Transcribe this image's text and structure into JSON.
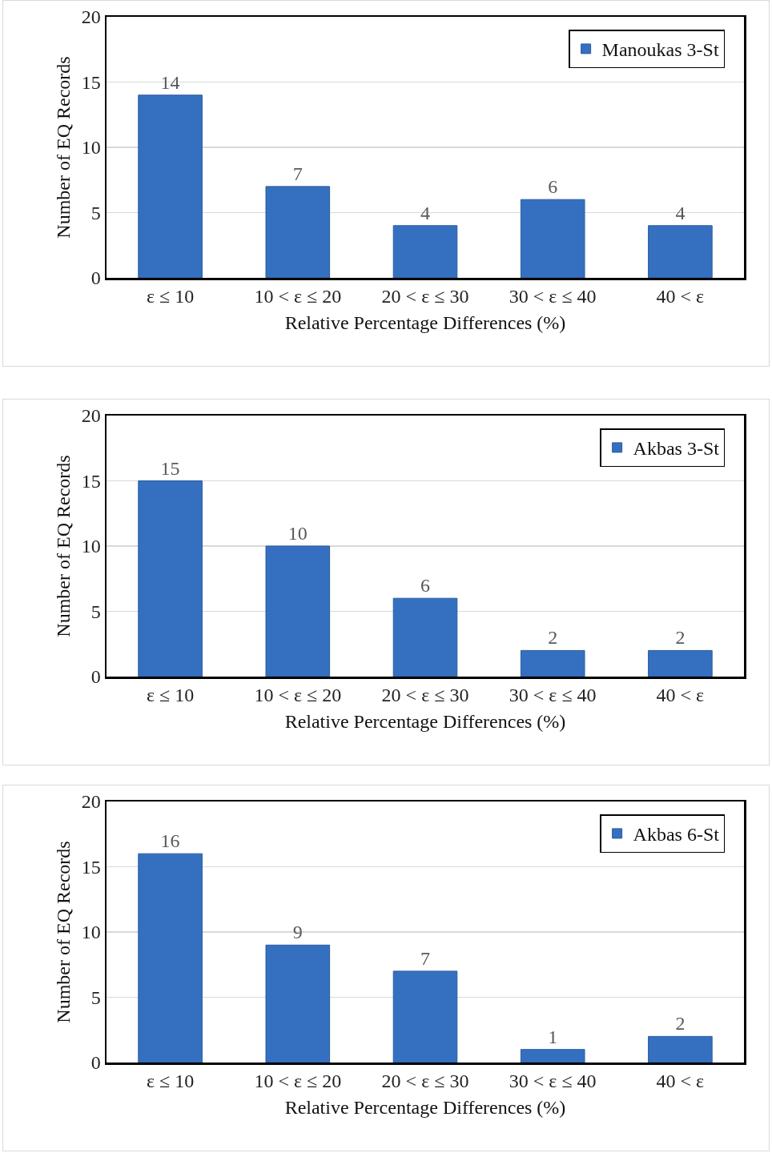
{
  "chart_data": [
    {
      "type": "bar",
      "xlabel": "Relative Percentage Differences (%)",
      "ylabel": "Number of EQ Records",
      "categories": [
        "ε ≤ 10",
        "10 < ε ≤ 20",
        "20 < ε ≤ 30",
        "30 < ε ≤ 40",
        "40 < ε"
      ],
      "series": [
        {
          "name": "Manoukas 3-St",
          "color": "#3570c0",
          "values": [
            14,
            7,
            4,
            6,
            4
          ]
        }
      ],
      "ylim": [
        0,
        20
      ],
      "yticks": [
        0,
        5,
        10,
        15,
        20
      ],
      "grid": "y",
      "legend": "top right",
      "data_labels": true
    },
    {
      "type": "bar",
      "xlabel": "Relative Percentage Differences (%)",
      "ylabel": "Number of EQ Records",
      "categories": [
        "ε ≤ 10",
        "10 < ε ≤ 20",
        "20 < ε ≤ 30",
        "30 < ε ≤ 40",
        "40 < ε"
      ],
      "series": [
        {
          "name": "Akbas 3-St",
          "color": "#3570c0",
          "values": [
            15,
            10,
            6,
            2,
            2
          ]
        }
      ],
      "ylim": [
        0,
        20
      ],
      "yticks": [
        0,
        5,
        10,
        15,
        20
      ],
      "grid": "y",
      "legend": "top right",
      "data_labels": true
    },
    {
      "type": "bar",
      "xlabel": "Relative Percentage Differences (%)",
      "ylabel": "Number of EQ Records",
      "categories": [
        "ε ≤ 10",
        "10 < ε ≤ 20",
        "20 < ε ≤ 30",
        "30 < ε ≤ 40",
        "40 < ε"
      ],
      "series": [
        {
          "name": "Akbas 6-St",
          "color": "#3570c0",
          "values": [
            16,
            9,
            7,
            1,
            2
          ]
        }
      ],
      "ylim": [
        0,
        20
      ],
      "yticks": [
        0,
        5,
        10,
        15,
        20
      ],
      "grid": "y",
      "legend": "top right",
      "data_labels": true
    }
  ]
}
